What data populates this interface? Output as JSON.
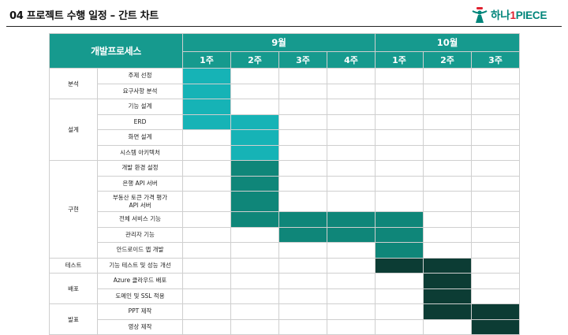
{
  "page_title": "04 프로젝트 수행 일정 – 간트 차트",
  "logo": {
    "text_a": "하나",
    "text_b": "1",
    "text_c": "PIECE"
  },
  "header": {
    "label": "개발프로세스",
    "months": [
      {
        "label": "9월",
        "weeks": [
          "1주",
          "2주",
          "3주",
          "4주"
        ]
      },
      {
        "label": "10월",
        "weeks": [
          "1주",
          "2주",
          "3주"
        ]
      }
    ]
  },
  "colors": {
    "header": "#169a8e",
    "phase_light": "#16b3b6",
    "phase_mid": "#0f8679",
    "phase_dark": "#0c3c34"
  },
  "groups": [
    {
      "category": "분석",
      "tasks": [
        {
          "name": "주제 선정",
          "weeks": [
            1
          ]
        },
        {
          "name": "요구사항 분석",
          "weeks": [
            1
          ]
        }
      ]
    },
    {
      "category": "설계",
      "tasks": [
        {
          "name": "기능 설계",
          "weeks": [
            1
          ]
        },
        {
          "name": "ERD",
          "weeks": [
            1,
            2
          ]
        },
        {
          "name": "화면 설계",
          "weeks": [
            2
          ]
        },
        {
          "name": "시스템 아키텍처",
          "weeks": [
            2
          ]
        }
      ]
    },
    {
      "category": "구현",
      "tasks": [
        {
          "name": "개발 환경 설정",
          "weeks": [
            2
          ]
        },
        {
          "name": "은행 API 서버",
          "weeks": [
            2
          ]
        },
        {
          "name": "부동산 토큰 가격 평가\nAPI 서버",
          "weeks": [
            2
          ]
        },
        {
          "name": "전체 서비스 기능",
          "weeks": [
            2,
            3,
            4,
            5
          ]
        },
        {
          "name": "관리자 기능",
          "weeks": [
            3,
            4,
            5
          ]
        },
        {
          "name": "안드로이드 앱 개발",
          "weeks": [
            5
          ]
        }
      ]
    },
    {
      "category": "테스트",
      "tasks": [
        {
          "name": "기능 테스트 및 성능 개선",
          "weeks": [
            5,
            6
          ]
        }
      ]
    },
    {
      "category": "배포",
      "tasks": [
        {
          "name": "Azure 클라우드 배포",
          "weeks": [
            6
          ]
        },
        {
          "name": "도메인 및 SSL 적용",
          "weeks": [
            6
          ]
        }
      ]
    },
    {
      "category": "발표",
      "tasks": [
        {
          "name": "PPT 제작",
          "weeks": [
            6,
            7
          ]
        },
        {
          "name": "영상 제작",
          "weeks": [
            7
          ]
        }
      ]
    }
  ]
}
